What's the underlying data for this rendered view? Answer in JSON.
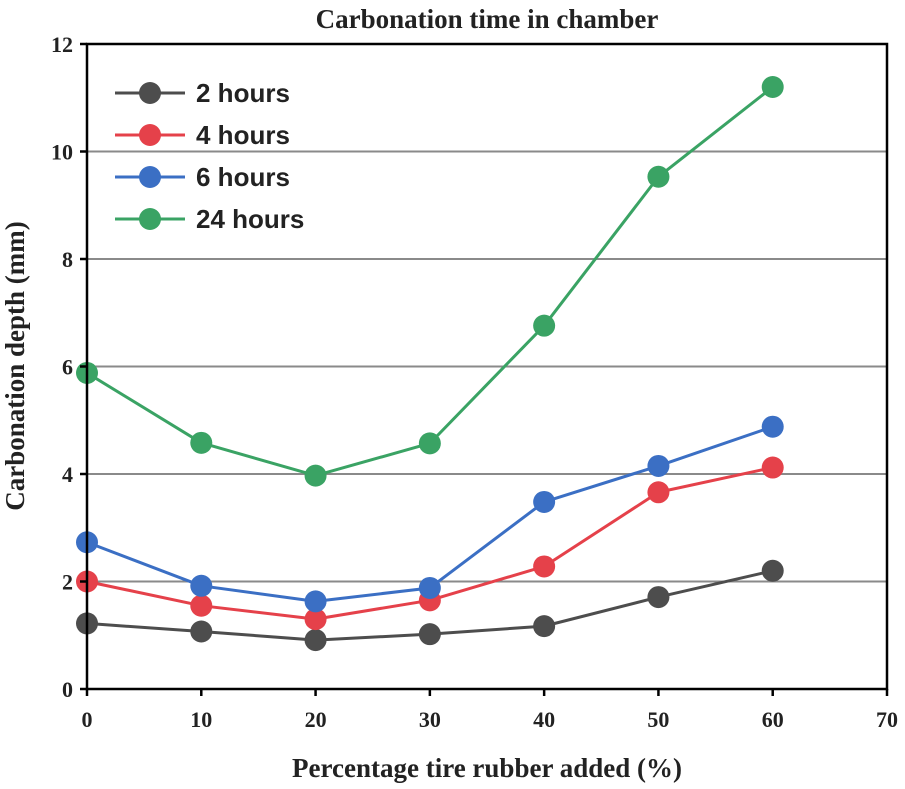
{
  "chart_data": {
    "type": "line",
    "title": "Carbonation time in chamber",
    "xlabel": "Percentage tire rubber added (%)",
    "ylabel": "Carbonation depth (mm)",
    "xlim": [
      0,
      70
    ],
    "ylim": [
      0,
      12
    ],
    "xticks": [
      0,
      10,
      20,
      30,
      40,
      50,
      60,
      70
    ],
    "yticks": [
      0,
      2,
      4,
      6,
      8,
      10,
      12
    ],
    "grid": "horizontal",
    "legend_position": "top-left",
    "x": [
      0,
      10,
      20,
      30,
      40,
      50,
      60
    ],
    "series": [
      {
        "name": "2 hours",
        "color": "#4d4d4d",
        "values": [
          1.22,
          1.07,
          0.91,
          1.02,
          1.17,
          1.71,
          2.2
        ]
      },
      {
        "name": "4 hours",
        "color": "#e5414a",
        "values": [
          2.0,
          1.55,
          1.3,
          1.65,
          2.28,
          3.66,
          4.12
        ]
      },
      {
        "name": "6 hours",
        "color": "#3b6fc4",
        "values": [
          2.73,
          1.92,
          1.63,
          1.88,
          3.48,
          4.15,
          4.88
        ]
      },
      {
        "name": "24 hours",
        "color": "#3aa364",
        "values": [
          5.88,
          4.58,
          3.97,
          4.57,
          6.76,
          9.53,
          11.2
        ]
      }
    ]
  }
}
